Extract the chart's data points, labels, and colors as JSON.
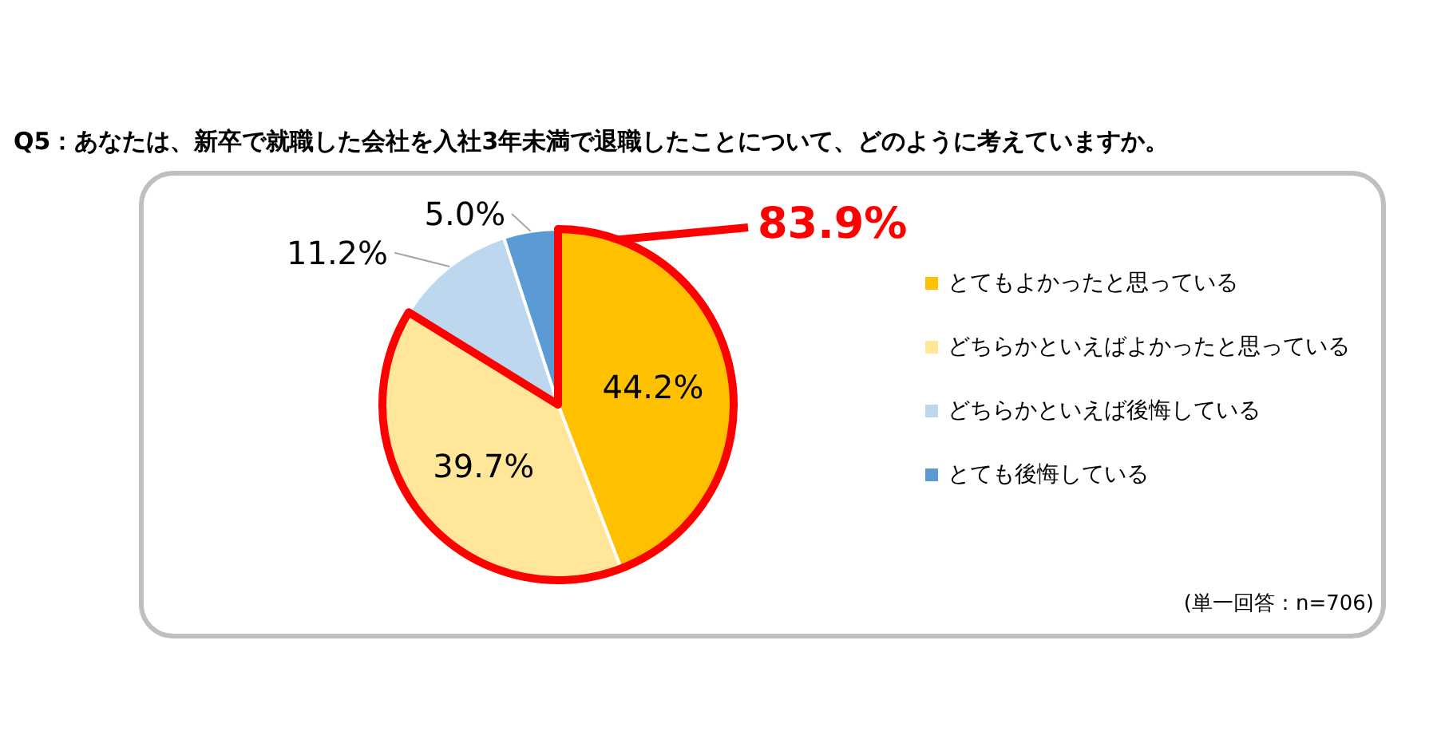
{
  "chart_data": {
    "type": "pie",
    "title": "Q5：あなたは、新卒で就職した会社を入社3年未満で退職したことについて、どのように考えていますか。",
    "categories": [
      "とてもよかったと思っている",
      "どちらかといえばよかったと思っている",
      "どちらかといえば後悔している",
      "とても後悔している"
    ],
    "values": [
      44.2,
      39.7,
      11.2,
      5.0
    ],
    "colors": [
      "#ffc000",
      "#ffe699",
      "#bdd7ee",
      "#5b9bd5"
    ],
    "value_labels": [
      "44.2%",
      "39.7%",
      "11.2%",
      "5.0%"
    ],
    "annotations": [
      "83.9%",
      "(単一回答：n=706)"
    ],
    "legend": "right"
  }
}
